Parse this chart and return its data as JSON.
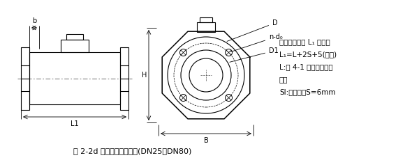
{
  "bg_color": "#ffffff",
  "line_color": "#000000",
  "dash_color": "#888888",
  "title": "图 2-2d 一体型电磁流量计(DN25～DN80)",
  "note_lines": [
    "注：仪表长度 L₁ 含衬里",
    "L₁=L+2S+5(允差)",
    "L:表 4-1 中仪表理论长",
    "度。",
    "SI:接地环，S=6mm"
  ],
  "dim_labels": {
    "b": "b",
    "L1": "L1",
    "H": "H",
    "B": "B",
    "D": "D",
    "n_do": "n-d₀",
    "D1": "D1"
  }
}
